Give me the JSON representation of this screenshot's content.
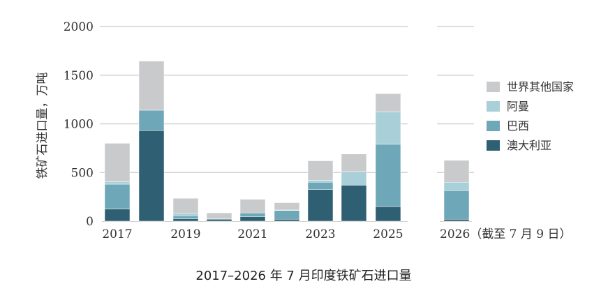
{
  "chart_data": {
    "type": "bar",
    "stacked": true,
    "title": "2017–2026 年 7 月印度铁矿石进口量",
    "ylabel": "铁矿石进口量，万吨",
    "xlabel": "",
    "ylim": [
      0,
      2000
    ],
    "y_ticks": [
      "0",
      "500",
      "1000",
      "1500",
      "2000"
    ],
    "y_tick_values": [
      0,
      500,
      1000,
      1500,
      2000
    ],
    "grid": true,
    "legend_position": "right",
    "categories": [
      "2017",
      "2018",
      "2019",
      "2020",
      "2021",
      "2022",
      "2023",
      "2024",
      "2025",
      "2026"
    ],
    "x_tick_labels": [
      "2017",
      "",
      "2019",
      "",
      "2021",
      "",
      "2023",
      "",
      "2025",
      "2026（截至 7 月 9 日）"
    ],
    "series": [
      {
        "name": "澳大利亚",
        "color": "#2e5f73",
        "values": [
          125,
          930,
          25,
          20,
          45,
          20,
          325,
          370,
          150,
          20
        ]
      },
      {
        "name": "巴西",
        "color": "#6ea8b8",
        "values": [
          255,
          210,
          30,
          5,
          40,
          90,
          75,
          0,
          640,
          295
        ]
      },
      {
        "name": "阿曼",
        "color": "#a9cfd8",
        "values": [
          25,
          0,
          25,
          0,
          0,
          5,
          20,
          140,
          335,
          85
        ]
      },
      {
        "name": "世界其他国家",
        "color": "#c9cacc",
        "values": [
          395,
          505,
          155,
          60,
          140,
          75,
          200,
          180,
          185,
          225
        ]
      }
    ]
  }
}
